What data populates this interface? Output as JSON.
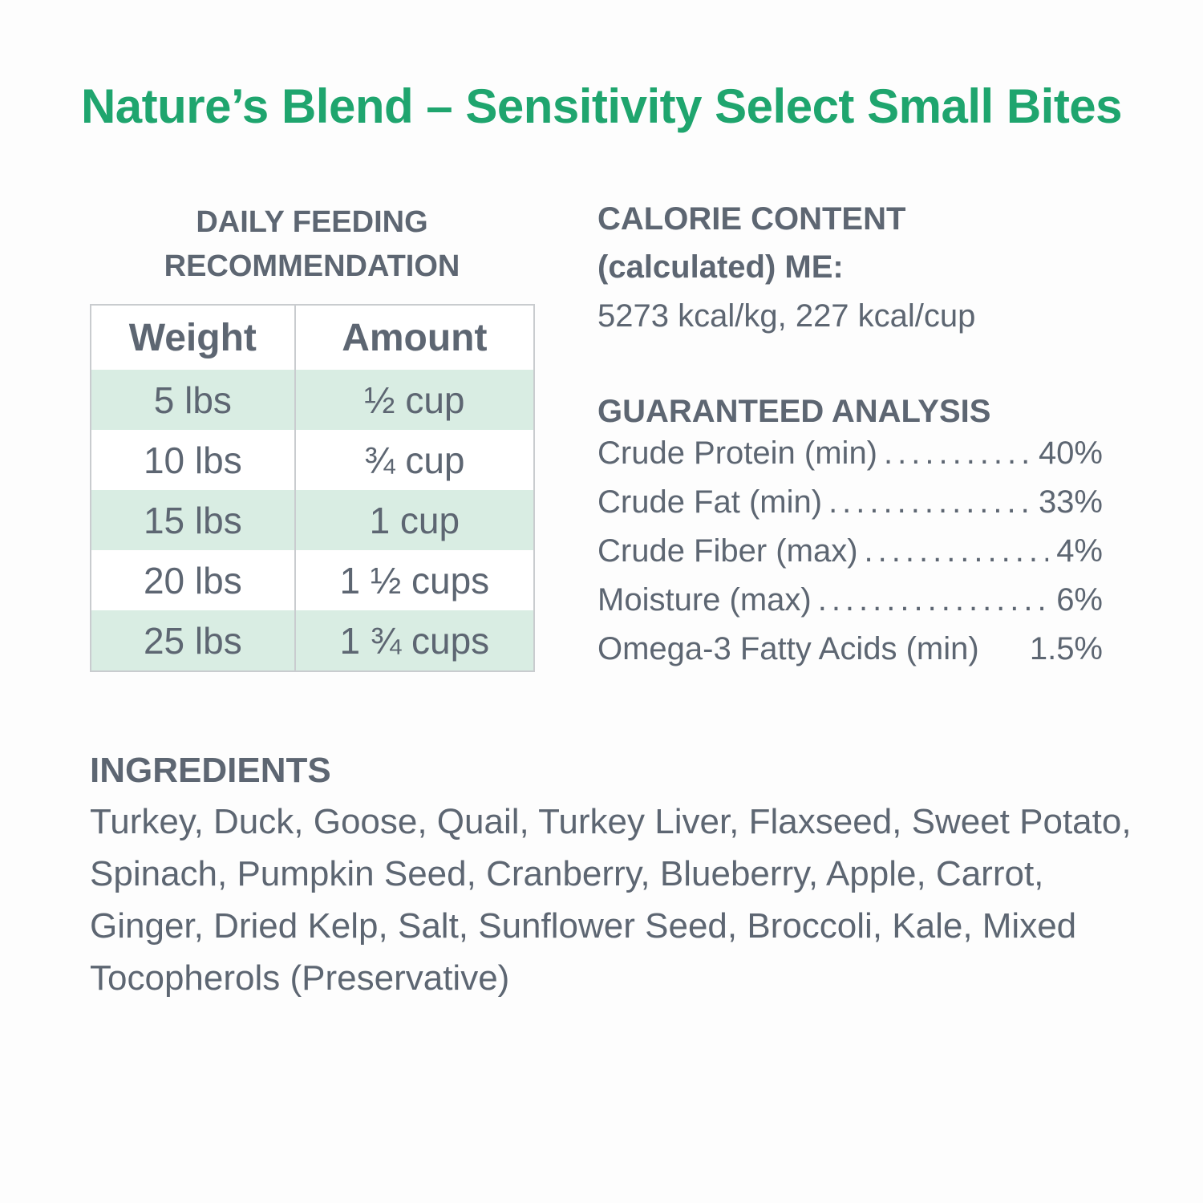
{
  "title": "Nature’s Blend – Sensitivity Select Small Bites",
  "colors": {
    "title": "#1fa56e",
    "text": "#5d6672",
    "row_shade": "#d9ede3",
    "table_border": "#c9cccf"
  },
  "feeding": {
    "heading_line1": "DAILY FEEDING",
    "heading_line2": "RECOMMENDATION",
    "columns": [
      "Weight",
      "Amount"
    ],
    "rows": [
      {
        "weight": "5 lbs",
        "amount": "½ cup"
      },
      {
        "weight": "10 lbs",
        "amount": "¾ cup"
      },
      {
        "weight": "15 lbs",
        "amount": "1 cup"
      },
      {
        "weight": "20 lbs",
        "amount": "1 ½ cups"
      },
      {
        "weight": "25 lbs",
        "amount": "1 ¾ cups"
      }
    ]
  },
  "calorie": {
    "heading_line1": "CALORIE CONTENT",
    "heading_line2": "(calculated) ME:",
    "value": "5273 kcal/kg, 227 kcal/cup"
  },
  "analysis": {
    "heading": "GUARANTEED ANALYSIS",
    "rows": [
      {
        "label": "Crude Protein (min)",
        "value": "40%"
      },
      {
        "label": "Crude Fat (min)",
        "value": "33%"
      },
      {
        "label": "Crude Fiber (max)",
        "value": "4%"
      },
      {
        "label": "Moisture (max)",
        "value": "6%"
      },
      {
        "label": "Omega-3 Fatty Acids (min)",
        "value": "1.5%"
      }
    ]
  },
  "ingredients": {
    "heading": "INGREDIENTS",
    "text": "Turkey, Duck, Goose, Quail, Turkey Liver, Flaxseed, Sweet Potato, Spinach, Pumpkin Seed, Cranberry, Blueberry, Apple, Carrot, Ginger, Dried Kelp, Salt, Sunflower Seed, Broccoli, Kale, Mixed Tocopherols (Preservative)"
  }
}
